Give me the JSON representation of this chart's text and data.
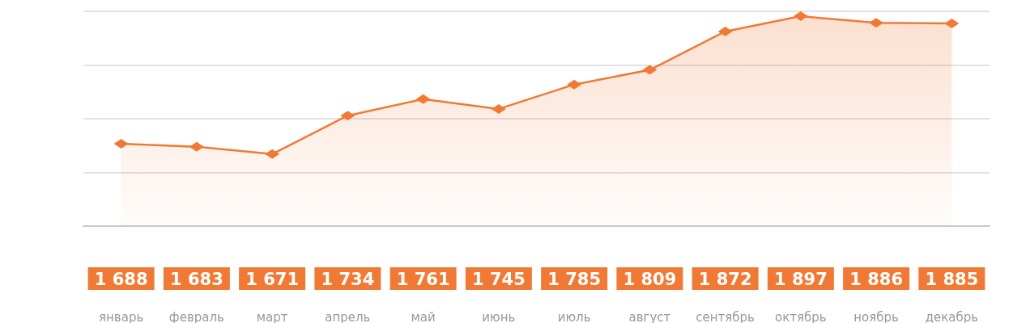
{
  "chart_data": {
    "type": "area",
    "categories": [
      "январь",
      "февраль",
      "март",
      "апрель",
      "май",
      "июнь",
      "июль",
      "август",
      "сентябрь",
      "октябрь",
      "ноябрь",
      "декабрь"
    ],
    "values": [
      1688,
      1683,
      1671,
      1734,
      1761,
      1745,
      1785,
      1809,
      1872,
      1897,
      1886,
      1885
    ],
    "value_labels": [
      "1 688",
      "1 683",
      "1 671",
      "1 734",
      "1 761",
      "1 745",
      "1 785",
      "1 809",
      "1 872",
      "1 897",
      "1 886",
      "1 885"
    ],
    "color": "#f07a35",
    "marker": "diamond",
    "grid": "y",
    "tick_labels": "x",
    "ylim": [
      1553,
      1905
    ],
    "yticks": [
      {
        "value": 1553,
        "label": null
      },
      {
        "value": 1641,
        "label": null
      },
      {
        "value": 1729,
        "label": null
      },
      {
        "value": 1817,
        "label": null
      },
      {
        "value": 1905,
        "label": null
      }
    ]
  }
}
